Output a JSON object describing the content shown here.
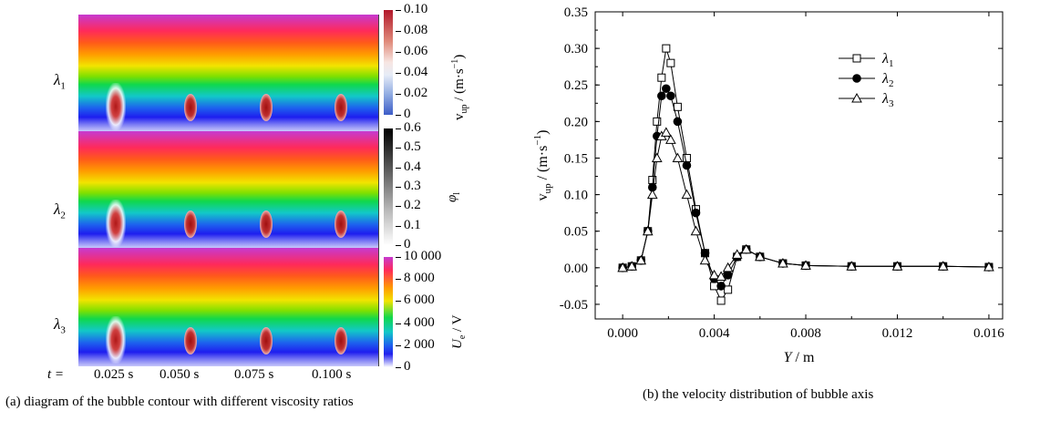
{
  "panel_a": {
    "rows": [
      "λ1",
      "λ2",
      "λ3"
    ],
    "t_label": "t =",
    "times": [
      "0.025 s",
      "0.050 s",
      "0.075 s",
      "0.100 s"
    ],
    "caption": "(a) diagram of the bubble contour with different viscosity ratios",
    "colorbars": [
      {
        "label": "v_up / (m·s^-1)",
        "ticks": [
          "0.10",
          "0.08",
          "0.06",
          "0.04",
          "0.02",
          "0"
        ]
      },
      {
        "label": "φ_l",
        "ticks": [
          "0.6",
          "0.5",
          "0.4",
          "0.3",
          "0.2",
          "0.1",
          "0"
        ]
      },
      {
        "label": "U_e / V",
        "ticks": [
          "10 000",
          "8 000",
          "6 000",
          "4 000",
          "2 000",
          "0"
        ]
      }
    ]
  },
  "chart_data": {
    "type": "line",
    "caption": "(b) the velocity distribution of bubble axis",
    "xlabel": "Y / m",
    "ylabel": "v_up / (m·s^-1)",
    "xlim": [
      -0.0012,
      0.0166
    ],
    "ylim": [
      -0.07,
      0.35
    ],
    "xticks": [
      "0.000",
      "0.004",
      "0.008",
      "0.012",
      "0.016"
    ],
    "yticks": [
      "-0.05",
      "0.00",
      "0.05",
      "0.10",
      "0.15",
      "0.20",
      "0.25",
      "0.30",
      "0.35"
    ],
    "legend_position": "top-right",
    "series": [
      {
        "name": "λ1",
        "marker": "square",
        "points": [
          [
            0,
            0
          ],
          [
            0.0004,
            0.002
          ],
          [
            0.0008,
            0.01
          ],
          [
            0.0011,
            0.05
          ],
          [
            0.0013,
            0.12
          ],
          [
            0.0015,
            0.2
          ],
          [
            0.0017,
            0.26
          ],
          [
            0.0019,
            0.3
          ],
          [
            0.0021,
            0.28
          ],
          [
            0.0024,
            0.22
          ],
          [
            0.0028,
            0.15
          ],
          [
            0.0032,
            0.08
          ],
          [
            0.0036,
            0.02
          ],
          [
            0.004,
            -0.025
          ],
          [
            0.0043,
            -0.045
          ],
          [
            0.0046,
            -0.03
          ],
          [
            0.005,
            0.015
          ],
          [
            0.0054,
            0.025
          ],
          [
            0.006,
            0.015
          ],
          [
            0.007,
            0.006
          ],
          [
            0.008,
            0.003
          ],
          [
            0.01,
            0.002
          ],
          [
            0.012,
            0.002
          ],
          [
            0.014,
            0.002
          ],
          [
            0.016,
            0.001
          ]
        ]
      },
      {
        "name": "λ2",
        "marker": "circle",
        "points": [
          [
            0,
            0
          ],
          [
            0.0004,
            0.002
          ],
          [
            0.0008,
            0.01
          ],
          [
            0.0011,
            0.05
          ],
          [
            0.0013,
            0.11
          ],
          [
            0.0015,
            0.18
          ],
          [
            0.0017,
            0.235
          ],
          [
            0.0019,
            0.245
          ],
          [
            0.0021,
            0.235
          ],
          [
            0.0024,
            0.2
          ],
          [
            0.0028,
            0.14
          ],
          [
            0.0032,
            0.075
          ],
          [
            0.0036,
            0.02
          ],
          [
            0.004,
            -0.015
          ],
          [
            0.0043,
            -0.025
          ],
          [
            0.0046,
            -0.01
          ],
          [
            0.005,
            0.015
          ],
          [
            0.0054,
            0.025
          ],
          [
            0.006,
            0.015
          ],
          [
            0.007,
            0.006
          ],
          [
            0.008,
            0.003
          ],
          [
            0.01,
            0.002
          ],
          [
            0.012,
            0.002
          ],
          [
            0.014,
            0.002
          ],
          [
            0.016,
            0.001
          ]
        ]
      },
      {
        "name": "λ3",
        "marker": "triangle",
        "points": [
          [
            0,
            0
          ],
          [
            0.0004,
            0.002
          ],
          [
            0.0008,
            0.01
          ],
          [
            0.0011,
            0.05
          ],
          [
            0.0013,
            0.1
          ],
          [
            0.0015,
            0.15
          ],
          [
            0.0017,
            0.18
          ],
          [
            0.0019,
            0.185
          ],
          [
            0.0021,
            0.175
          ],
          [
            0.0024,
            0.15
          ],
          [
            0.0028,
            0.1
          ],
          [
            0.0032,
            0.05
          ],
          [
            0.0036,
            0.01
          ],
          [
            0.004,
            -0.01
          ],
          [
            0.0043,
            -0.012
          ],
          [
            0.0046,
            0.0
          ],
          [
            0.005,
            0.018
          ],
          [
            0.0054,
            0.025
          ],
          [
            0.006,
            0.015
          ],
          [
            0.007,
            0.006
          ],
          [
            0.008,
            0.003
          ],
          [
            0.01,
            0.002
          ],
          [
            0.012,
            0.002
          ],
          [
            0.014,
            0.002
          ],
          [
            0.016,
            0.001
          ]
        ]
      }
    ]
  }
}
